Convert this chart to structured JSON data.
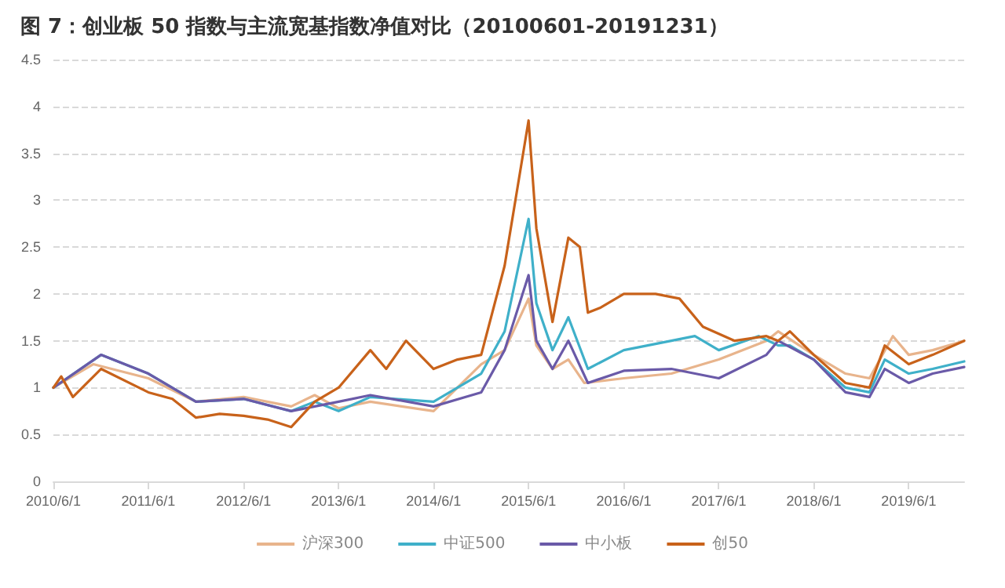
{
  "chart_data": {
    "type": "line",
    "title": "图 7：创业板 50 指数与主流宽基指数净值对比（20100601-20191231）",
    "xlim": [
      "2010-06-01",
      "2019-12-31"
    ],
    "xticks": [
      {
        "value": "2010-06-01",
        "label": "2010/6/1"
      },
      {
        "value": "2011-06-01",
        "label": "2011/6/1"
      },
      {
        "value": "2012-06-01",
        "label": "2012/6/1"
      },
      {
        "value": "2013-06-01",
        "label": "2013/6/1"
      },
      {
        "value": "2014-06-01",
        "label": "2014/6/1"
      },
      {
        "value": "2015-06-01",
        "label": "2015/6/1"
      },
      {
        "value": "2016-06-01",
        "label": "2016/6/1"
      },
      {
        "value": "2017-06-01",
        "label": "2017/6/1"
      },
      {
        "value": "2018-06-01",
        "label": "2018/6/1"
      },
      {
        "value": "2019-06-01",
        "label": "2019/6/1"
      }
    ],
    "ylim": [
      0,
      4.5
    ],
    "yticks": [
      0,
      0.5,
      1,
      1.5,
      2,
      2.5,
      3,
      3.5,
      4,
      4.5
    ],
    "grid": "y",
    "legend": "bottom",
    "marker": "none",
    "line_style": "solid",
    "series": [
      {
        "name": "沪深300",
        "color": "#e8b48c",
        "x": [
          "2010-06-01",
          "2010-11-01",
          "2011-06-01",
          "2011-12-01",
          "2012-06-01",
          "2012-12-01",
          "2013-03-01",
          "2013-06-01",
          "2013-10-01",
          "2014-06-01",
          "2014-12-01",
          "2015-03-01",
          "2015-06-01",
          "2015-07-01",
          "2015-09-01",
          "2015-11-01",
          "2016-01-01",
          "2016-06-01",
          "2016-12-01",
          "2017-06-01",
          "2017-12-01",
          "2018-01-15",
          "2018-06-01",
          "2018-10-01",
          "2019-01-01",
          "2019-04-01",
          "2019-06-01",
          "2019-09-01",
          "2019-12-31"
        ],
        "values": [
          1.0,
          1.25,
          1.1,
          0.85,
          0.9,
          0.8,
          0.92,
          0.78,
          0.85,
          0.75,
          1.25,
          1.4,
          1.95,
          1.45,
          1.2,
          1.3,
          1.05,
          1.1,
          1.15,
          1.3,
          1.5,
          1.6,
          1.35,
          1.15,
          1.1,
          1.55,
          1.35,
          1.4,
          1.5
        ]
      },
      {
        "name": "中证500",
        "color": "#3fb0c9",
        "x": [
          "2010-06-01",
          "2010-12-01",
          "2011-06-01",
          "2011-12-01",
          "2012-06-01",
          "2012-12-01",
          "2013-03-01",
          "2013-06-01",
          "2013-10-01",
          "2014-06-01",
          "2014-12-01",
          "2015-03-01",
          "2015-06-01",
          "2015-07-01",
          "2015-09-01",
          "2015-11-01",
          "2016-01-15",
          "2016-06-01",
          "2016-12-01",
          "2017-03-01",
          "2017-06-01",
          "2017-11-01",
          "2018-01-15",
          "2018-03-01",
          "2018-06-01",
          "2018-10-01",
          "2019-01-01",
          "2019-03-01",
          "2019-06-01",
          "2019-09-01",
          "2019-12-31"
        ],
        "values": [
          1.0,
          1.35,
          1.15,
          0.85,
          0.88,
          0.75,
          0.85,
          0.75,
          0.9,
          0.85,
          1.15,
          1.6,
          2.8,
          1.9,
          1.4,
          1.75,
          1.2,
          1.4,
          1.5,
          1.55,
          1.4,
          1.55,
          1.45,
          1.45,
          1.3,
          1.0,
          0.95,
          1.3,
          1.15,
          1.2,
          1.28
        ]
      },
      {
        "name": "中小板",
        "color": "#6a5aa8",
        "x": [
          "2010-06-01",
          "2010-12-01",
          "2011-06-01",
          "2011-12-01",
          "2012-06-01",
          "2012-12-01",
          "2013-06-01",
          "2013-10-01",
          "2014-06-01",
          "2014-12-01",
          "2015-03-01",
          "2015-06-01",
          "2015-07-01",
          "2015-09-01",
          "2015-11-01",
          "2016-01-15",
          "2016-06-01",
          "2016-12-01",
          "2017-06-01",
          "2017-12-01",
          "2018-01-15",
          "2018-06-01",
          "2018-10-01",
          "2019-01-01",
          "2019-03-01",
          "2019-06-01",
          "2019-09-01",
          "2019-12-31"
        ],
        "values": [
          1.0,
          1.35,
          1.15,
          0.85,
          0.88,
          0.75,
          0.85,
          0.92,
          0.8,
          0.95,
          1.4,
          2.2,
          1.5,
          1.2,
          1.5,
          1.05,
          1.18,
          1.2,
          1.1,
          1.35,
          1.5,
          1.3,
          0.95,
          0.9,
          1.2,
          1.05,
          1.15,
          1.22
        ]
      },
      {
        "name": "创50",
        "color": "#c8621a",
        "x": [
          "2010-06-01",
          "2010-07-01",
          "2010-08-15",
          "2010-12-01",
          "2011-06-01",
          "2011-09-01",
          "2011-12-01",
          "2012-03-01",
          "2012-06-01",
          "2012-09-01",
          "2012-12-01",
          "2013-03-01",
          "2013-06-01",
          "2013-10-01",
          "2013-12-01",
          "2014-02-15",
          "2014-06-01",
          "2014-09-01",
          "2014-12-01",
          "2015-03-01",
          "2015-06-01",
          "2015-07-01",
          "2015-09-01",
          "2015-11-01",
          "2015-12-15",
          "2016-01-15",
          "2016-03-01",
          "2016-06-01",
          "2016-10-01",
          "2017-01-01",
          "2017-04-01",
          "2017-08-01",
          "2017-12-01",
          "2018-01-15",
          "2018-03-01",
          "2018-06-01",
          "2018-10-01",
          "2019-01-01",
          "2019-03-01",
          "2019-06-01",
          "2019-09-01",
          "2019-12-31"
        ],
        "values": [
          1.0,
          1.12,
          0.9,
          1.2,
          0.95,
          0.88,
          0.68,
          0.72,
          0.7,
          0.66,
          0.58,
          0.85,
          1.0,
          1.4,
          1.2,
          1.5,
          1.2,
          1.3,
          1.35,
          2.3,
          3.85,
          2.7,
          1.7,
          2.6,
          2.5,
          1.8,
          1.85,
          2.0,
          2.0,
          1.95,
          1.65,
          1.5,
          1.55,
          1.5,
          1.6,
          1.35,
          1.05,
          1.0,
          1.45,
          1.25,
          1.35,
          1.5
        ]
      }
    ]
  }
}
